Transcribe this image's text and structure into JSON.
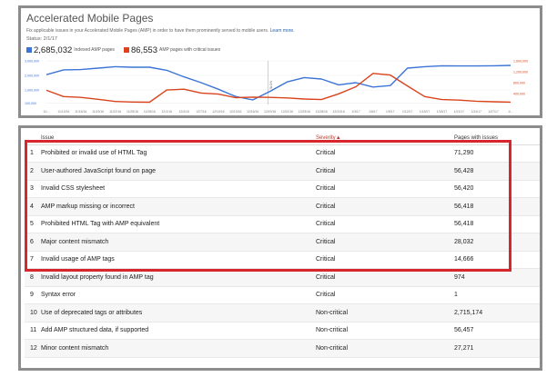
{
  "header": {
    "title": "Accelerated Mobile Pages",
    "description": "Fix applicable issues in your Accelerated Mobile Pages (AMP) in order to have them prominently served to mobile users.",
    "learn_more": "Learn more.",
    "status": "Status: 2/1/17"
  },
  "legend": {
    "indexed": {
      "count": "2,685,032",
      "label": "Indexed AMP pages",
      "color": "#3b74d6"
    },
    "critical": {
      "count": "86,553",
      "label": "AMP pages with critical issues",
      "color": "#d9441c"
    }
  },
  "chart_data": {
    "type": "line",
    "x": [
      "11/10/16",
      "11/13/16",
      "11/16/16",
      "11/19/16",
      "11/22/16",
      "11/25/16",
      "11/28/16",
      "12/1/16",
      "12/4/16",
      "12/7/16",
      "12/10/16",
      "12/13/16",
      "12/16/16",
      "12/19/16",
      "12/22/16",
      "12/25/16",
      "12/28/16",
      "12/31/16",
      "1/3/17",
      "1/6/17",
      "1/9/17",
      "1/12/17",
      "1/15/17",
      "1/18/17",
      "1/21/17",
      "1/24/17",
      "1/27/17",
      "1/30/17"
    ],
    "x_ticks": [
      "11/...",
      "11/13/16",
      "11/16/16",
      "11/19/16",
      "11/22/16",
      "11/25/16",
      "11/28/16",
      "12/1/16",
      "12/4/16",
      "12/7/16",
      "12/10/16",
      "12/13/16",
      "12/16/16",
      "12/19/16",
      "12/22/16",
      "12/25/16",
      "12/28/16",
      "12/31/16",
      "1/3/17",
      "1/6/17",
      "1/9/17",
      "1/12/17",
      "1/15/17",
      "1/18/17",
      "1/21/17",
      "1/24/17",
      "1/27/17",
      "1/..."
    ],
    "y_left_ticks": [
      "3,000,000",
      "2,000,000",
      "1,000,000",
      "100,000"
    ],
    "y_right_ticks": [
      "1,600,000",
      "1,200,000",
      "800,000",
      "400,000"
    ],
    "annotation": "NOTE",
    "series": [
      {
        "name": "Indexed AMP pages",
        "axis": "left",
        "color": "#3b74d6",
        "values": [
          2050000,
          2380000,
          2400000,
          2500000,
          2600000,
          2560000,
          2560000,
          2350000,
          1900000,
          1500000,
          1050000,
          550000,
          310000,
          900000,
          1550000,
          1850000,
          1750000,
          1350000,
          1500000,
          1200000,
          1300000,
          2500000,
          2600000,
          2660000,
          2650000,
          2650000,
          2660000,
          2685032
        ]
      },
      {
        "name": "AMP pages with critical issues",
        "axis": "right",
        "color": "#d9441c",
        "values": [
          520000,
          290000,
          260000,
          190000,
          110000,
          90000,
          85000,
          530000,
          560000,
          420000,
          380000,
          250000,
          270000,
          260000,
          240000,
          200000,
          180000,
          390000,
          650000,
          1140000,
          1080000,
          680000,
          290000,
          180000,
          160000,
          120000,
          100000,
          86553
        ]
      }
    ]
  },
  "table": {
    "headers": {
      "issue": "Issue",
      "severity": "Severity",
      "pages": "Pages with issues"
    },
    "rows": [
      {
        "idx": "1",
        "issue": "Prohibited or invalid use of HTML Tag",
        "severity": "Critical",
        "pages": "71,290"
      },
      {
        "idx": "2",
        "issue": "User-authored JavaScript found on page",
        "severity": "Critical",
        "pages": "56,428"
      },
      {
        "idx": "3",
        "issue": "Invalid CSS stylesheet",
        "severity": "Critical",
        "pages": "56,420"
      },
      {
        "idx": "4",
        "issue": "AMP markup missing or incorrect",
        "severity": "Critical",
        "pages": "56,418"
      },
      {
        "idx": "5",
        "issue": "Prohibited HTML Tag with AMP equivalent",
        "severity": "Critical",
        "pages": "56,418"
      },
      {
        "idx": "6",
        "issue": "Major content mismatch",
        "severity": "Critical",
        "pages": "28,032"
      },
      {
        "idx": "7",
        "issue": "Invalid usage of AMP tags",
        "severity": "Critical",
        "pages": "14,666"
      },
      {
        "idx": "8",
        "issue": "Invalid layout property found in AMP tag",
        "severity": "Critical",
        "pages": "974"
      },
      {
        "idx": "9",
        "issue": "Syntax error",
        "severity": "Critical",
        "pages": "1"
      },
      {
        "idx": "10",
        "issue": "Use of deprecated tags or attributes",
        "severity": "Non-critical",
        "pages": "2,715,174"
      },
      {
        "idx": "11",
        "issue": "Add AMP structured data, if supported",
        "severity": "Non-critical",
        "pages": "56,457"
      },
      {
        "idx": "12",
        "issue": "Minor content mismatch",
        "severity": "Non-critical",
        "pages": "27,271"
      }
    ]
  },
  "highlight_color": "#d8262f"
}
